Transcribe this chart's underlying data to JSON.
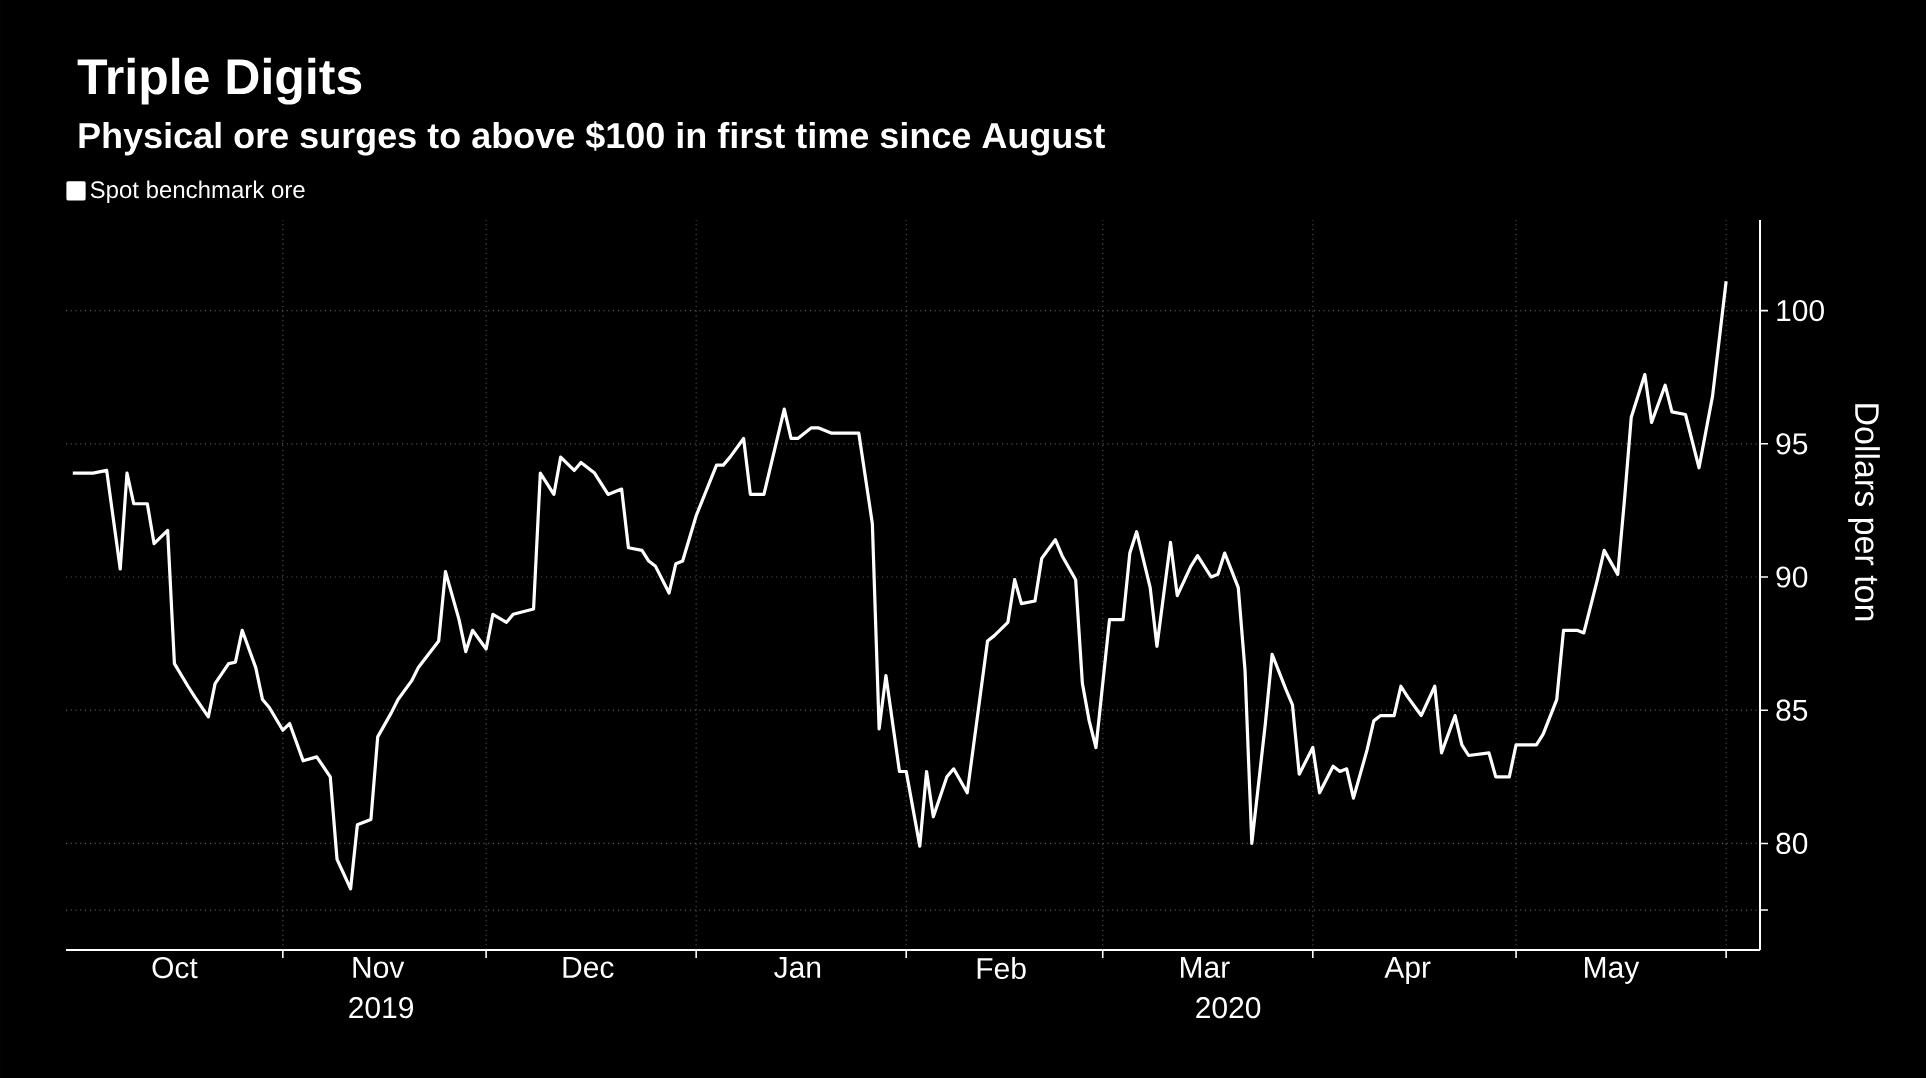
{
  "chart_data": {
    "type": "line",
    "title": "Triple Digits",
    "subtitle": "Physical ore surges to above $100 in first time since August",
    "ylabel": "Dollars per ton",
    "annotations": [
      "2019",
      "2020"
    ],
    "legend": "top left",
    "grid": true,
    "marker": "none",
    "line_style": "solid",
    "xlim": [
      "2019-09-30",
      "2020-06-06"
    ],
    "xticks": [
      {
        "value": "2019-11-01",
        "label": null
      },
      {
        "value": "2019-12-01",
        "label": null
      },
      {
        "value": "2020-01-01",
        "label": null
      },
      {
        "value": "2020-02-01",
        "label": null
      },
      {
        "value": "2020-03-01",
        "label": null
      },
      {
        "value": "2020-04-01",
        "label": null
      },
      {
        "value": "2020-05-01",
        "label": null
      },
      {
        "value": "2020-06-01",
        "label": null
      },
      {
        "value": "2019-10-16",
        "label": "Oct"
      },
      {
        "value": "2019-11-15",
        "label": "Nov"
      },
      {
        "value": "2019-12-16",
        "label": "Dec"
      },
      {
        "value": "2020-01-16",
        "label": "Jan"
      },
      {
        "value": "2020-02-15",
        "label": "Feb"
      },
      {
        "value": "2020-03-16",
        "label": "Mar"
      },
      {
        "value": "2020-04-15",
        "label": "Apr"
      },
      {
        "value": "2020-05-15",
        "label": "May"
      }
    ],
    "ylim": [
      76,
      103.4
    ],
    "yticks": [
      {
        "value": 77.5,
        "label": null
      },
      80,
      85,
      90,
      95,
      100
    ],
    "series": [
      {
        "name": "Spot benchmark ore",
        "color": "#ffffff",
        "x": [
          "2019-10-01",
          "2019-10-04",
          "2019-10-06",
          "2019-10-08",
          "2019-10-09",
          "2019-10-10",
          "2019-10-12",
          "2019-10-13",
          "2019-10-15",
          "2019-10-16",
          "2019-10-18",
          "2019-10-19",
          "2019-10-21",
          "2019-10-22",
          "2019-10-24",
          "2019-10-25",
          "2019-10-26",
          "2019-10-28",
          "2019-10-29",
          "2019-10-30",
          "2019-11-01",
          "2019-11-02",
          "2019-11-04",
          "2019-11-06",
          "2019-11-08",
          "2019-11-09",
          "2019-11-11",
          "2019-11-12",
          "2019-11-14",
          "2019-11-15",
          "2019-11-17",
          "2019-11-18",
          "2019-11-20",
          "2019-11-21",
          "2019-11-24",
          "2019-11-25",
          "2019-11-27",
          "2019-11-28",
          "2019-11-29",
          "2019-12-01",
          "2019-12-02",
          "2019-12-04",
          "2019-12-05",
          "2019-12-08",
          "2019-12-09",
          "2019-12-11",
          "2019-12-12",
          "2019-12-14",
          "2019-12-15",
          "2019-12-17",
          "2019-12-19",
          "2019-12-21",
          "2019-12-22",
          "2019-12-24",
          "2019-12-25",
          "2019-12-26",
          "2019-12-28",
          "2019-12-29",
          "2019-12-30",
          "2020-01-01",
          "2020-01-04",
          "2020-01-05",
          "2020-01-06",
          "2020-01-08",
          "2020-01-09",
          "2020-01-11",
          "2020-01-14",
          "2020-01-15",
          "2020-01-16",
          "2020-01-18",
          "2020-01-19",
          "2020-01-21",
          "2020-01-25",
          "2020-01-27",
          "2020-01-28",
          "2020-01-29",
          "2020-01-31",
          "2020-02-01",
          "2020-02-03",
          "2020-02-04",
          "2020-02-05",
          "2020-02-07",
          "2020-02-08",
          "2020-02-10",
          "2020-02-13",
          "2020-02-14",
          "2020-02-16",
          "2020-02-17",
          "2020-02-18",
          "2020-02-20",
          "2020-02-21",
          "2020-02-23",
          "2020-02-24",
          "2020-02-26",
          "2020-02-27",
          "2020-02-28",
          "2020-02-29",
          "2020-03-02",
          "2020-03-04",
          "2020-03-05",
          "2020-03-06",
          "2020-03-08",
          "2020-03-09",
          "2020-03-11",
          "2020-03-12",
          "2020-03-14",
          "2020-03-15",
          "2020-03-17",
          "2020-03-18",
          "2020-03-19",
          "2020-03-21",
          "2020-03-22",
          "2020-03-23",
          "2020-03-25",
          "2020-03-26",
          "2020-03-28",
          "2020-03-29",
          "2020-03-30",
          "2020-04-01",
          "2020-04-02",
          "2020-04-04",
          "2020-04-05",
          "2020-04-06",
          "2020-04-07",
          "2020-04-09",
          "2020-04-10",
          "2020-04-11",
          "2020-04-13",
          "2020-04-14",
          "2020-04-15",
          "2020-04-17",
          "2020-04-19",
          "2020-04-20",
          "2020-04-22",
          "2020-04-23",
          "2020-04-24",
          "2020-04-27",
          "2020-04-28",
          "2020-04-30",
          "2020-05-01",
          "2020-05-04",
          "2020-05-05",
          "2020-05-07",
          "2020-05-08",
          "2020-05-10",
          "2020-05-11",
          "2020-05-13",
          "2020-05-14",
          "2020-05-16",
          "2020-05-17",
          "2020-05-18",
          "2020-05-20",
          "2020-05-21",
          "2020-05-23",
          "2020-05-24",
          "2020-05-26",
          "2020-05-28",
          "2020-05-30",
          "2020-06-01"
        ],
        "values": [
          93.9,
          93.9,
          94.0,
          90.3,
          93.9,
          92.75,
          92.75,
          91.25,
          91.75,
          86.75,
          85.9,
          85.5,
          84.75,
          86.0,
          86.75,
          86.8,
          88.0,
          86.6,
          85.4,
          85.1,
          84.25,
          84.5,
          83.1,
          83.25,
          82.5,
          79.4,
          78.3,
          80.7,
          80.9,
          84.0,
          84.9,
          85.4,
          86.1,
          86.6,
          87.6,
          90.2,
          88.4,
          87.2,
          88.0,
          87.3,
          88.6,
          88.3,
          88.6,
          88.8,
          93.9,
          93.1,
          94.5,
          94.0,
          94.3,
          93.9,
          93.1,
          93.3,
          91.1,
          91.0,
          90.6,
          90.4,
          89.4,
          90.5,
          90.6,
          92.3,
          94.2,
          94.2,
          94.5,
          95.2,
          93.1,
          93.1,
          96.3,
          95.2,
          95.2,
          95.6,
          95.6,
          95.4,
          95.4,
          92.0,
          84.3,
          86.3,
          82.7,
          82.7,
          79.9,
          82.7,
          81.0,
          82.5,
          82.8,
          81.9,
          87.6,
          87.8,
          88.3,
          89.9,
          89.0,
          89.1,
          90.7,
          91.4,
          90.8,
          89.9,
          86.0,
          84.6,
          83.6,
          88.4,
          88.4,
          90.9,
          91.7,
          89.6,
          87.4,
          91.3,
          89.3,
          90.4,
          90.8,
          90.0,
          90.1,
          90.9,
          89.6,
          86.5,
          80.0,
          84.5,
          87.1,
          85.8,
          85.2,
          82.6,
          83.6,
          81.9,
          82.9,
          82.7,
          82.8,
          81.7,
          83.5,
          84.6,
          84.8,
          84.8,
          85.9,
          85.5,
          84.8,
          85.9,
          83.4,
          84.8,
          83.7,
          83.3,
          83.4,
          82.5,
          82.5,
          83.7,
          83.7,
          84.1,
          85.4,
          88.0,
          88.0,
          87.9,
          89.9,
          91.0,
          90.1,
          92.9,
          96.0,
          97.6,
          95.8,
          97.2,
          96.2,
          96.1,
          94.1,
          96.8,
          101.1
        ]
      }
    ]
  }
}
